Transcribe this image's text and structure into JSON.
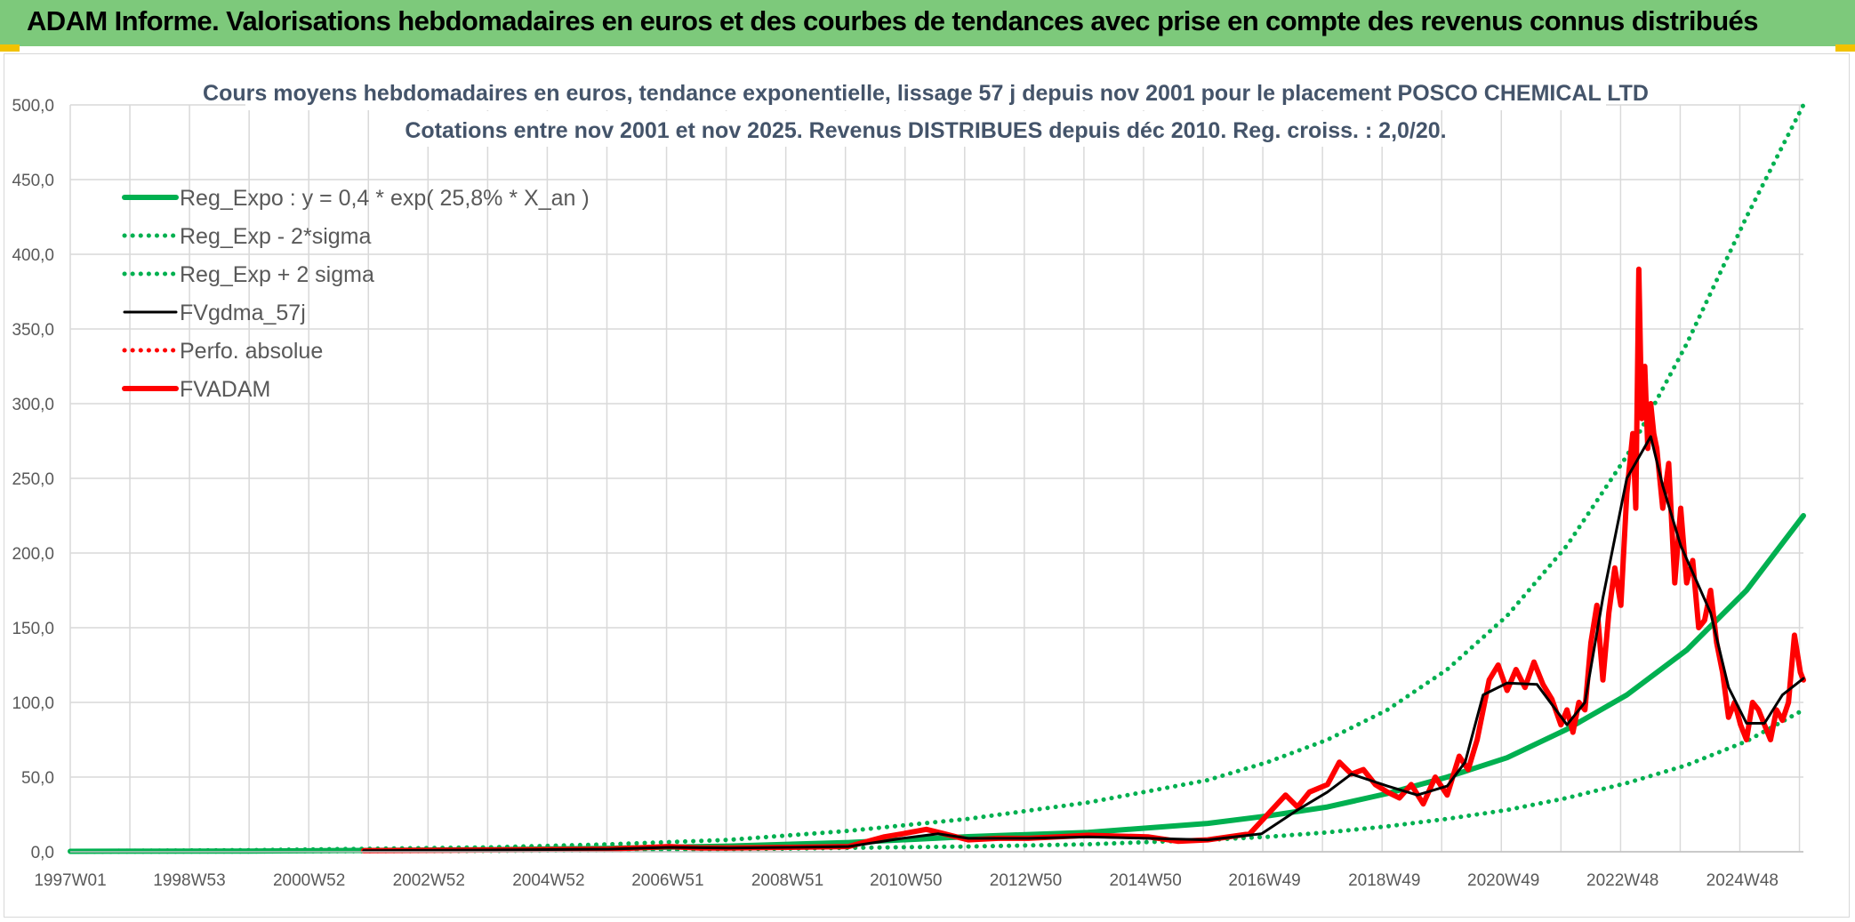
{
  "banner": {
    "title": "ADAM Informe. Valorisations hebdomadaires en euros et des courbes de tendances avec prise en compte des revenus connus distribués"
  },
  "colors": {
    "banner": "#7dc97b",
    "trend": "#00b050",
    "smooth": "#000000",
    "price": "#ff0000",
    "grid": "#d9d9d9"
  },
  "chart_data": {
    "type": "line",
    "title": "Cours moyens hebdomadaires en euros, tendance exponentielle, lissage 57 j depuis nov 2001 pour le placement POSCO CHEMICAL LTD",
    "subtitle": "Cotations entre nov 2001 et nov 2025. Revenus DISTRIBUES depuis déc 2010. Reg. croiss. : 2,0/20.",
    "xlabel": "",
    "ylabel": "",
    "xlim": [
      1997.0,
      2025.95
    ],
    "ylim": [
      0,
      500
    ],
    "yticks": [
      "0,0",
      "50,0",
      "100,0",
      "150,0",
      "200,0",
      "250,0",
      "300,0",
      "350,0",
      "400,0",
      "450,0",
      "500,0"
    ],
    "yticks_values": [
      0,
      50,
      100,
      150,
      200,
      250,
      300,
      350,
      400,
      450,
      500
    ],
    "xticks": [
      "1997W01",
      "1998W53",
      "2000W52",
      "2002W52",
      "2004W52",
      "2006W51",
      "2008W51",
      "2010W50",
      "2012W50",
      "2014W50",
      "2016W49",
      "2018W49",
      "2020W49",
      "2022W48",
      "2024W48"
    ],
    "xticks_values": [
      1997.0,
      1998.99,
      2000.99,
      2002.99,
      2004.99,
      2006.98,
      2008.98,
      2010.96,
      2012.96,
      2014.96,
      2016.95,
      2018.95,
      2020.94,
      2022.93,
      2024.93
    ],
    "legend": {
      "position": "top-left"
    },
    "series": [
      {
        "name": "Reg_Expo : y = 0,4 * exp( 25,8% *  X_an )",
        "style": "solid-thick",
        "color": "#00b050",
        "x": [
          1997,
          2000,
          2002,
          2004,
          2006,
          2008,
          2010,
          2012,
          2014,
          2016,
          2017,
          2018,
          2019,
          2020,
          2021,
          2022,
          2023,
          2024,
          2025,
          2025.95
        ],
        "y": [
          0.3,
          0.5,
          0.9,
          1.4,
          2.3,
          3.8,
          6.2,
          10.1,
          13,
          19,
          24,
          30,
          39,
          50,
          63,
          82,
          105,
          135,
          175,
          225
        ]
      },
      {
        "name": "Reg_Exp - 2*sigma",
        "style": "dotted",
        "color": "#00b050",
        "x": [
          1997,
          2000,
          2002,
          2004,
          2006,
          2008,
          2010,
          2012,
          2014,
          2016,
          2017,
          2018,
          2019,
          2020,
          2021,
          2022,
          2023,
          2024,
          2025,
          2025.95
        ],
        "y": [
          0,
          0.2,
          0.4,
          0.6,
          1,
          1.6,
          2.6,
          3.5,
          5,
          8,
          10,
          13,
          17,
          22,
          28,
          36,
          46,
          58,
          74,
          95
        ]
      },
      {
        "name": "Reg_Exp + 2 sigma",
        "style": "dotted",
        "color": "#00b050",
        "x": [
          1997,
          2000,
          2002,
          2004,
          2006,
          2008,
          2010,
          2012,
          2014,
          2016,
          2017,
          2018,
          2019,
          2020,
          2021,
          2022,
          2023,
          2024,
          2025,
          2025.95
        ],
        "y": [
          0.5,
          1.1,
          2,
          3,
          5,
          8,
          14,
          22,
          33,
          48,
          60,
          75,
          95,
          122,
          158,
          205,
          265,
          340,
          425,
          500
        ]
      },
      {
        "name": "FVgdma_57j",
        "style": "solid",
        "color": "#000000",
        "x": [
          2001.9,
          2004,
          2006,
          2007,
          2008,
          2009,
          2010,
          2010.9,
          2011.5,
          2012,
          2013,
          2014,
          2015,
          2016,
          2016.9,
          2017.5,
          2018,
          2018.4,
          2019,
          2019.5,
          2020,
          2020.3,
          2020.6,
          2021,
          2021.5,
          2022,
          2022.3,
          2022.6,
          2023,
          2023.4,
          2023.6,
          2023.9,
          2024.4,
          2024.7,
          2025,
          2025.3,
          2025.6,
          2025.95
        ],
        "y": [
          0.8,
          1.2,
          1.8,
          3,
          2.5,
          3,
          3.5,
          9,
          12,
          9,
          9,
          10,
          9,
          8,
          12,
          28,
          40,
          52,
          44,
          38,
          44,
          60,
          105,
          113,
          112,
          85,
          100,
          170,
          250,
          278,
          245,
          205,
          160,
          110,
          86,
          86,
          105,
          116
        ]
      },
      {
        "name": "Perfo. absolue",
        "style": "dotted",
        "color": "#ff0000",
        "x": [],
        "y": []
      },
      {
        "name": "FVADAM",
        "style": "solid-thick",
        "color": "#ff0000",
        "x": [
          2001.9,
          2004,
          2006,
          2007,
          2007.5,
          2008,
          2009,
          2010,
          2010.6,
          2010.9,
          2011.3,
          2011.6,
          2012,
          2012.5,
          2013,
          2014,
          2015,
          2015.5,
          2016,
          2016.7,
          2017,
          2017.3,
          2017.5,
          2017.7,
          2018,
          2018.2,
          2018.4,
          2018.6,
          2018.8,
          2019,
          2019.2,
          2019.4,
          2019.6,
          2019.8,
          2020,
          2020.2,
          2020.35,
          2020.5,
          2020.7,
          2020.85,
          2021,
          2021.15,
          2021.3,
          2021.45,
          2021.6,
          2021.75,
          2021.9,
          2022.0,
          2022.1,
          2022.2,
          2022.3,
          2022.4,
          2022.5,
          2022.6,
          2022.7,
          2022.8,
          2022.9,
          2023.0,
          2023.1,
          2023.15,
          2023.2,
          2023.25,
          2023.3,
          2023.35,
          2023.4,
          2023.45,
          2023.5,
          2023.6,
          2023.7,
          2023.8,
          2023.9,
          2024.0,
          2024.1,
          2024.2,
          2024.3,
          2024.4,
          2024.5,
          2024.6,
          2024.7,
          2024.8,
          2024.9,
          2025.0,
          2025.1,
          2025.2,
          2025.3,
          2025.4,
          2025.5,
          2025.6,
          2025.7,
          2025.8,
          2025.9,
          2025.95
        ],
        "y": [
          0.8,
          1.2,
          1.8,
          3.5,
          2.5,
          2.5,
          3,
          3.5,
          10,
          12,
          15,
          12,
          8,
          9,
          9,
          11,
          10,
          7,
          8,
          12,
          25,
          38,
          30,
          40,
          45,
          60,
          52,
          55,
          45,
          40,
          36,
          45,
          32,
          50,
          38,
          64,
          55,
          75,
          115,
          125,
          108,
          122,
          110,
          127,
          112,
          102,
          85,
          95,
          80,
          100,
          95,
          140,
          165,
          115,
          160,
          190,
          165,
          240,
          280,
          230,
          390,
          290,
          325,
          270,
          300,
          280,
          270,
          230,
          260,
          180,
          230,
          180,
          195,
          150,
          155,
          175,
          140,
          120,
          90,
          100,
          85,
          75,
          100,
          95,
          85,
          75,
          95,
          88,
          100,
          145,
          120,
          115
        ]
      }
    ]
  }
}
